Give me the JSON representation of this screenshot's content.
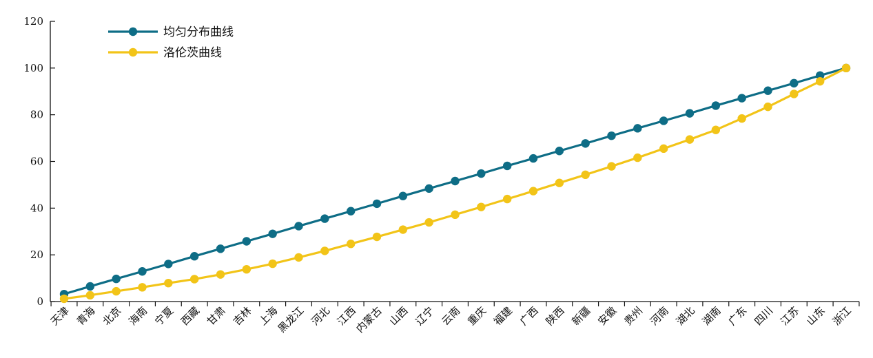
{
  "chart_data": {
    "type": "line",
    "title": "",
    "xlabel": "",
    "ylabel": "",
    "ylim": [
      0,
      120
    ],
    "yticks": [
      0,
      20,
      40,
      60,
      80,
      100,
      120
    ],
    "grid": false,
    "legend_position": "top-left",
    "categories": [
      "天津",
      "青海",
      "北京",
      "海南",
      "宁夏",
      "西藏",
      "甘肃",
      "吉林",
      "上海",
      "黑龙江",
      "河北",
      "江西",
      "内蒙古",
      "山西",
      "辽宁",
      "云南",
      "重庆",
      "福建",
      "广西",
      "陕西",
      "新疆",
      "安徽",
      "贵州",
      "河南",
      "湖北",
      "湖南",
      "广东",
      "四川",
      "江苏",
      "山东",
      "浙江"
    ],
    "series": [
      {
        "name": "均匀分布曲线",
        "color": "#0e6d86",
        "values": [
          3.2,
          6.5,
          9.7,
          12.9,
          16.1,
          19.4,
          22.6,
          25.8,
          29.0,
          32.3,
          35.5,
          38.7,
          41.9,
          45.2,
          48.4,
          51.6,
          54.8,
          58.1,
          61.3,
          64.5,
          67.7,
          71.0,
          74.2,
          77.4,
          80.6,
          83.9,
          87.1,
          90.3,
          93.5,
          96.8,
          100.0
        ]
      },
      {
        "name": "洛伦茨曲线",
        "color": "#f2c418",
        "values": [
          1.2,
          2.7,
          4.4,
          6.1,
          7.9,
          9.6,
          11.6,
          13.8,
          16.2,
          18.9,
          21.7,
          24.7,
          27.7,
          30.8,
          33.9,
          37.2,
          40.5,
          43.9,
          47.3,
          50.8,
          54.3,
          57.9,
          61.6,
          65.5,
          69.4,
          73.5,
          78.4,
          83.4,
          88.9,
          94.3,
          100.0
        ]
      }
    ]
  }
}
